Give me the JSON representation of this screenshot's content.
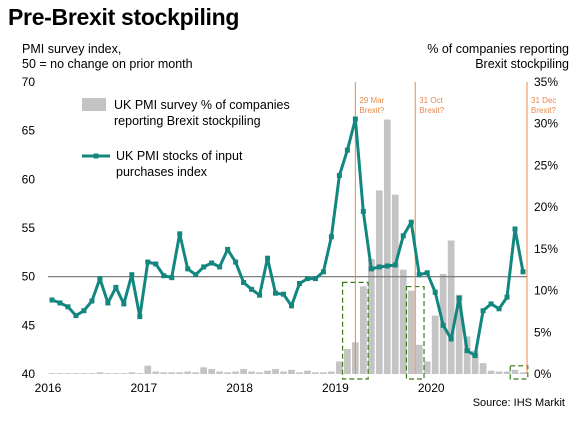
{
  "header": {
    "title": "Pre-Brexit stockpiling",
    "left_axis_title": [
      "PMI survey index,",
      "50 = no change on prior month"
    ],
    "right_axis_title": [
      "% of companies reporting",
      "Brexit stockpiling"
    ],
    "source": "Source: IHS Markit"
  },
  "legend": {
    "bar_label": [
      "UK PMI survey % of companies",
      "reporting Brexit stockpiling"
    ],
    "line_label": [
      "UK PMI stocks of input",
      "purchases index"
    ]
  },
  "events": [
    {
      "label": [
        "29 Mar",
        "Brexit?"
      ]
    },
    {
      "label": [
        "31 Oct",
        "Brexit?"
      ]
    },
    {
      "label": [
        "31 Dec",
        "Brexit?"
      ]
    }
  ],
  "colors": {
    "line": "#12877f",
    "bar": "#c4c4c4",
    "event_line": "#e8894a",
    "dashed_box": "#3a7a1a",
    "ref_line": "#707070"
  },
  "chart_data": {
    "type": "bar+line",
    "x_tick_labels": [
      "2016",
      "2017",
      "2018",
      "2019",
      "2020"
    ],
    "left_axis": {
      "range": [
        40,
        70
      ],
      "ticks": [
        "40",
        "45",
        "50",
        "55",
        "60",
        "65",
        "70"
      ],
      "reference": 50
    },
    "right_axis": {
      "range": [
        0,
        35
      ],
      "ticks": [
        "0%",
        "5%",
        "10%",
        "15%",
        "20%",
        "25%",
        "30%",
        "35%"
      ]
    },
    "months": [
      "2016-01",
      "2016-02",
      "2016-03",
      "2016-04",
      "2016-05",
      "2016-06",
      "2016-07",
      "2016-08",
      "2016-09",
      "2016-10",
      "2016-11",
      "2016-12",
      "2017-01",
      "2017-02",
      "2017-03",
      "2017-04",
      "2017-05",
      "2017-06",
      "2017-07",
      "2017-08",
      "2017-09",
      "2017-10",
      "2017-11",
      "2017-12",
      "2018-01",
      "2018-02",
      "2018-03",
      "2018-04",
      "2018-05",
      "2018-06",
      "2018-07",
      "2018-08",
      "2018-09",
      "2018-10",
      "2018-11",
      "2018-12",
      "2019-01",
      "2019-02",
      "2019-03",
      "2019-04",
      "2019-05",
      "2019-06",
      "2019-07",
      "2019-08",
      "2019-09",
      "2019-10",
      "2019-11",
      "2019-12",
      "2020-01",
      "2020-02",
      "2020-03",
      "2020-04",
      "2020-05",
      "2020-06",
      "2020-07",
      "2020-08",
      "2020-09",
      "2020-10",
      "2020-11",
      "2020-12"
    ],
    "series": [
      {
        "name": "UK PMI stocks of input purchases index",
        "type": "line",
        "axis": "left",
        "values": [
          47.6,
          47.3,
          46.9,
          46.0,
          46.5,
          47.5,
          49.8,
          47.3,
          48.9,
          47.2,
          50.2,
          45.9,
          51.5,
          51.3,
          50.1,
          49.9,
          54.4,
          50.8,
          50.2,
          51.0,
          51.4,
          51.0,
          52.8,
          51.5,
          49.4,
          48.7,
          48.1,
          51.9,
          48.3,
          48.2,
          47.0,
          49.3,
          49.8,
          49.8,
          50.5,
          54.1,
          60.4,
          63.0,
          66.2,
          56.7,
          50.8,
          51.0,
          51.1,
          51.2,
          54.2,
          55.6,
          50.2,
          50.4,
          48.4,
          45.0,
          43.6,
          47.8,
          42.4,
          41.9,
          46.5,
          47.2,
          46.7,
          47.9,
          54.9,
          50.5
        ]
      },
      {
        "name": "UK PMI survey % of companies reporting Brexit stockpiling",
        "type": "bar",
        "axis": "right",
        "values": [
          0.1,
          0.1,
          0.1,
          0.1,
          0.1,
          0.1,
          0.2,
          0.1,
          0.1,
          0.1,
          0.2,
          0.1,
          1.0,
          0.3,
          0.2,
          0.2,
          0.2,
          0.3,
          0.2,
          0.8,
          0.6,
          0.3,
          0.2,
          0.3,
          0.6,
          0.3,
          0.2,
          0.4,
          0.6,
          0.3,
          0.5,
          0.2,
          0.4,
          0.2,
          0.2,
          0.3,
          1.5,
          3.0,
          3.8,
          10.5,
          13.8,
          22.0,
          30.5,
          21.5,
          12.5,
          10.0,
          3.5,
          1.5,
          7.0,
          12.0,
          16.0,
          9.5,
          4.5,
          2.8,
          1.3,
          0.4,
          0.3,
          0.3,
          0.5,
          0.2
        ]
      }
    ],
    "grid": false,
    "legend_position": "top-left"
  }
}
